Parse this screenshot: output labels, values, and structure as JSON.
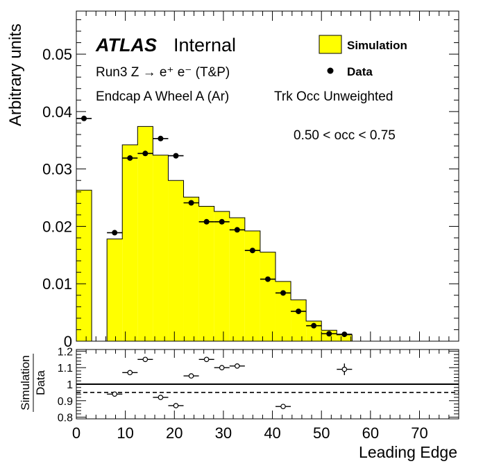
{
  "chart_data": [
    {
      "type": "bar",
      "panel": "main",
      "ylabel": "Arbitrary units",
      "ylim": [
        0,
        0.0575
      ],
      "yticks": [
        "0",
        "0.01",
        "0.02",
        "0.03",
        "0.04",
        "0.05"
      ],
      "xlim": [
        0,
        78
      ],
      "annotations": {
        "atlas": "ATLAS",
        "internal": "Internal",
        "line1": "Run3 Z → e⁺ e⁻ (T&P)",
        "line2": "Endcap A Wheel A (Ar)",
        "line3": "Trk Occ Unweighted",
        "cut": "0.50 < occ < 0.75"
      },
      "legend": {
        "placement": "top-right",
        "simulation": "Simulation",
        "data": "Data"
      },
      "colors": {
        "simulation_fill": "#ffff00",
        "outline": "#000000"
      },
      "series": [
        {
          "name": "Simulation",
          "bin_width": 3.125,
          "bin_low_edges": [
            0,
            3.125,
            6.25,
            9.375,
            12.5,
            15.625,
            18.75,
            21.875,
            25,
            28.125,
            31.25,
            34.375,
            37.5,
            40.625,
            43.75,
            46.875,
            50,
            53.125
          ],
          "values": [
            0.0263,
            0,
            0.0178,
            0.0342,
            0.0374,
            0.0324,
            0.028,
            0.0251,
            0.0235,
            0.0226,
            0.0215,
            0.0192,
            0.0155,
            0.0104,
            0.0072,
            0.0035,
            0.0019,
            0.0011
          ]
        },
        {
          "name": "Data",
          "x": [
            1.5625,
            7.8125,
            10.9375,
            14.0625,
            17.1875,
            20.3125,
            23.4375,
            26.5625,
            29.6875,
            32.8125,
            35.9375,
            39.0625,
            42.1875,
            45.3125,
            48.4375,
            51.5625,
            54.6875
          ],
          "y": [
            0.0388,
            0.0189,
            0.0319,
            0.0327,
            0.0353,
            0.0323,
            0.0241,
            0.0208,
            0.0208,
            0.0194,
            0.0158,
            0.0108,
            0.0084,
            0.0052,
            0.0027,
            0.0013,
            0.0012
          ]
        }
      ]
    },
    {
      "type": "scatter",
      "panel": "ratio",
      "ylabel_num": "Simulation",
      "ylabel_den": "Data",
      "xlabel": "Leading Edge",
      "ylim": [
        0.79,
        1.21
      ],
      "yticks": [
        "0.8",
        "0.9",
        "1",
        "1.1",
        "1.2"
      ],
      "xlim": [
        0,
        78
      ],
      "xticks": [
        "0",
        "10",
        "20",
        "30",
        "40",
        "50",
        "60",
        "70"
      ],
      "reference_lines": {
        "solid": 1.0,
        "dashed": 0.95
      },
      "series": [
        {
          "x": [
            7.8125,
            10.9375,
            14.0625,
            17.1875,
            20.3125,
            23.4375,
            26.5625,
            29.6875,
            32.8125,
            42.1875,
            54.6875
          ],
          "y": [
            0.94,
            1.07,
            1.15,
            0.92,
            0.87,
            1.05,
            1.15,
            1.1,
            1.11,
            0.865,
            1.09
          ],
          "yerr": [
            0,
            0,
            0,
            0,
            0,
            0,
            0,
            0,
            0,
            0,
            0.035
          ]
        }
      ]
    }
  ]
}
